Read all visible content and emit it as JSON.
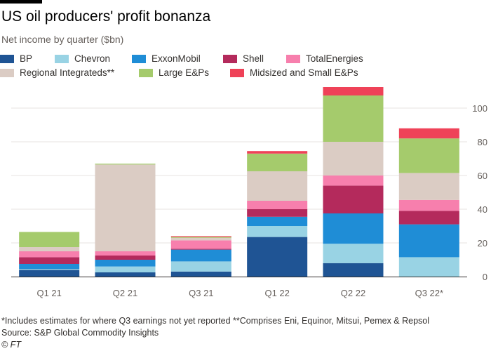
{
  "colors": {
    "BP": "#1f5494",
    "Chevron": "#99d3e4",
    "ExxonMobil": "#1f8dd6",
    "Shell": "#b42a5c",
    "TotalEnergies": "#f77fad",
    "Regional Integrateds**": "#dbccc4",
    "Large E&Ps": "#a5cb6c",
    "Midsized and Small E&Ps": "#ef4258"
  },
  "chart_data": {
    "type": "bar",
    "stacked": true,
    "title": "US oil producers' profit bonanza",
    "subtitle": "Net income by quarter ($bn)",
    "xlabel": "",
    "ylabel": "",
    "ylim": [
      0,
      110
    ],
    "yticks": [
      0,
      20,
      40,
      60,
      80,
      100
    ],
    "grid": true,
    "y_axis_position": "right",
    "legend_position": "top",
    "categories": [
      "Q1 21",
      "Q2 21",
      "Q3 21",
      "Q1 22",
      "Q2 22",
      "Q3 22*"
    ],
    "series": [
      {
        "name": "BP",
        "values": [
          4,
          2.5,
          3,
          23.5,
          8,
          0
        ]
      },
      {
        "name": "Chevron",
        "values": [
          0.5,
          3.5,
          6,
          6.5,
          11.5,
          11.5
        ]
      },
      {
        "name": "ExxonMobil",
        "values": [
          3,
          4,
          7,
          5.5,
          18,
          19.5
        ]
      },
      {
        "name": "Shell",
        "values": [
          4,
          2.5,
          0.5,
          4.5,
          16.5,
          8
        ]
      },
      {
        "name": "TotalEnergies",
        "values": [
          3.5,
          2.5,
          5,
          5,
          6,
          6.5
        ]
      },
      {
        "name": "Regional Integrateds**",
        "values": [
          2.5,
          51.5,
          1.5,
          17.5,
          20,
          16
        ]
      },
      {
        "name": "Large E&Ps",
        "values": [
          9,
          0.5,
          0.5,
          10.5,
          27.5,
          20.5
        ]
      },
      {
        "name": "Midsized and Small E&Ps",
        "values": [
          0,
          0,
          0.5,
          1.5,
          5,
          6
        ]
      }
    ]
  },
  "footnote": "*Includes estimates for where Q3 earnings not yet reported **Comprises Eni, Equinor, Mitsui, Pemex & Repsol",
  "source": "Source: S&P Global Commodity Insights",
  "credit": "© FT"
}
